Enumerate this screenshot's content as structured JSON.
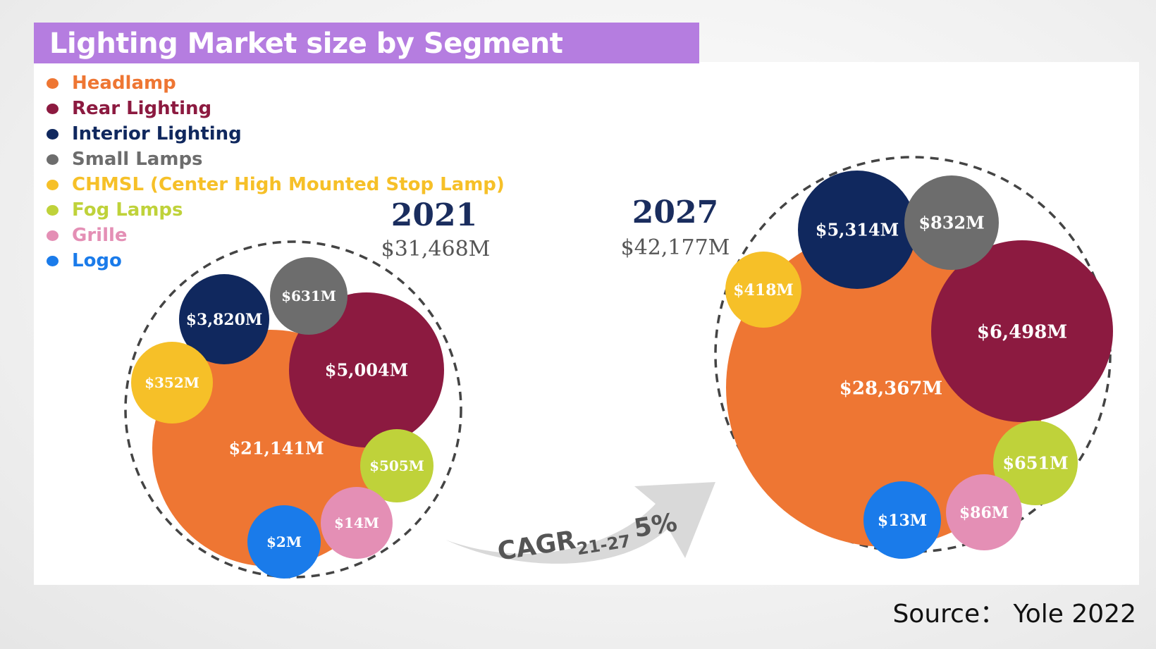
{
  "title": "Lighting Market size by Segment",
  "source": "Source： Yole 2022",
  "cagr": {
    "label": "CAGR",
    "subscript": "21-27",
    "value": "5%"
  },
  "chart_data": {
    "type": "bubble",
    "title": "Lighting Market size by Segment",
    "legend": [
      {
        "name": "Headlamp",
        "color": "#ee7633"
      },
      {
        "name": "Rear Lighting",
        "color": "#8c1a40"
      },
      {
        "name": "Interior Lighting",
        "color": "#10285e"
      },
      {
        "name": "Small Lamps",
        "color": "#6d6d6d"
      },
      {
        "name": "CHMSL (Center High Mounted Stop Lamp)",
        "color": "#f6c028"
      },
      {
        "name": "Fog Lamps",
        "color": "#bfd23a"
      },
      {
        "name": "Grille",
        "color": "#e48fb5"
      },
      {
        "name": "Logo",
        "color": "#1a7bea"
      }
    ],
    "years": [
      {
        "year": "2021",
        "total": "$31,468M",
        "segments": [
          {
            "name": "Headlamp",
            "value": 21141,
            "label": "$21,141M"
          },
          {
            "name": "Rear Lighting",
            "value": 5004,
            "label": "$5,004M"
          },
          {
            "name": "Interior Lighting",
            "value": 3820,
            "label": "$3,820M"
          },
          {
            "name": "Small Lamps",
            "value": 631,
            "label": "$631M"
          },
          {
            "name": "CHMSL (Center High Mounted Stop Lamp)",
            "value": 352,
            "label": "$352M"
          },
          {
            "name": "Fog Lamps",
            "value": 505,
            "label": "$505M"
          },
          {
            "name": "Grille",
            "value": 14,
            "label": "$14M"
          },
          {
            "name": "Logo",
            "value": 2,
            "label": "$2M"
          }
        ]
      },
      {
        "year": "2027",
        "total": "$42,177M",
        "segments": [
          {
            "name": "Headlamp",
            "value": 28367,
            "label": "$28,367M"
          },
          {
            "name": "Rear Lighting",
            "value": 6498,
            "label": "$6,498M"
          },
          {
            "name": "Interior Lighting",
            "value": 5314,
            "label": "$5,314M"
          },
          {
            "name": "Small Lamps",
            "value": 832,
            "label": "$832M"
          },
          {
            "name": "CHMSL (Center High Mounted Stop Lamp)",
            "value": 418,
            "label": "$418M"
          },
          {
            "name": "Fog Lamps",
            "value": 651,
            "label": "$651M"
          },
          {
            "name": "Grille",
            "value": 86,
            "label": "$86M"
          },
          {
            "name": "Logo",
            "value": 13,
            "label": "$13M"
          }
        ]
      }
    ]
  }
}
